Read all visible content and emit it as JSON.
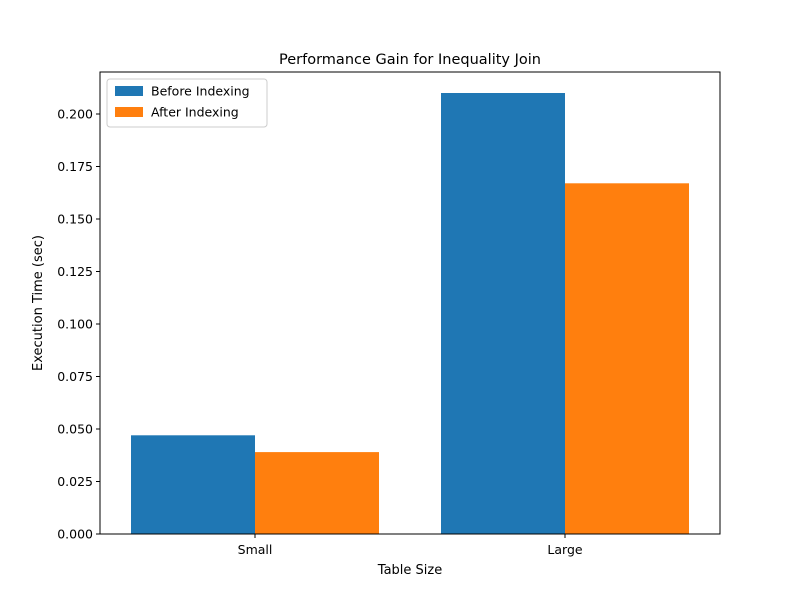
{
  "chart_data": {
    "type": "bar",
    "title": "Performance Gain for Inequality Join",
    "xlabel": "Table Size",
    "ylabel": "Execution Time (sec)",
    "categories": [
      "Small",
      "Large"
    ],
    "series": [
      {
        "name": "Before Indexing",
        "values": [
          0.047,
          0.21
        ],
        "color": "#1f77b4"
      },
      {
        "name": "After Indexing",
        "values": [
          0.039,
          0.167
        ],
        "color": "#ff7f0e"
      }
    ],
    "ylim": [
      0,
      0.22
    ],
    "yticks": [
      0.0,
      0.025,
      0.05,
      0.075,
      0.1,
      0.125,
      0.15,
      0.175,
      0.2
    ],
    "ytick_labels": [
      "0.000",
      "0.025",
      "0.050",
      "0.075",
      "0.100",
      "0.125",
      "0.150",
      "0.175",
      "0.200"
    ],
    "grid": false,
    "legend_position": "top-left"
  }
}
